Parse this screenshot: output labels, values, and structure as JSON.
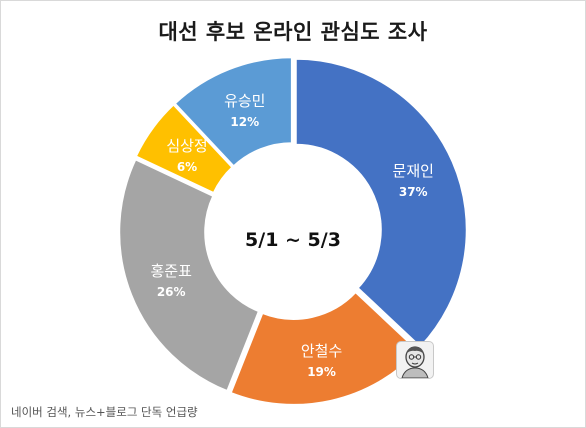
{
  "title": "대선 후보 온라인 관심도 조사",
  "center_label": "5/1 ~ 5/3",
  "source": "네이버 검색, 뉴스+블로그 단독 언급량",
  "colors": {
    "moon": "#4472C4",
    "ahn": "#ED7D31",
    "hong": "#A5A5A5",
    "sim": "#FFC000",
    "yoo": "#5B9BD5"
  },
  "chart_data": {
    "type": "pie",
    "title": "대선 후보 온라인 관심도 조사",
    "categories": [
      "문재인",
      "안철수",
      "홍준표",
      "심상정",
      "유승민"
    ],
    "values": [
      37,
      19,
      26,
      6,
      12
    ],
    "labels": [
      "37%",
      "19%",
      "26%",
      "6%",
      "12%"
    ],
    "colors": [
      "#4472C4",
      "#ED7D31",
      "#A5A5A5",
      "#FFC000",
      "#5B9BD5"
    ],
    "donut": true,
    "start": "top",
    "direction": "clockwise",
    "exploded": true,
    "legend": "none"
  },
  "icons": {
    "corner_face": "face-icon"
  }
}
